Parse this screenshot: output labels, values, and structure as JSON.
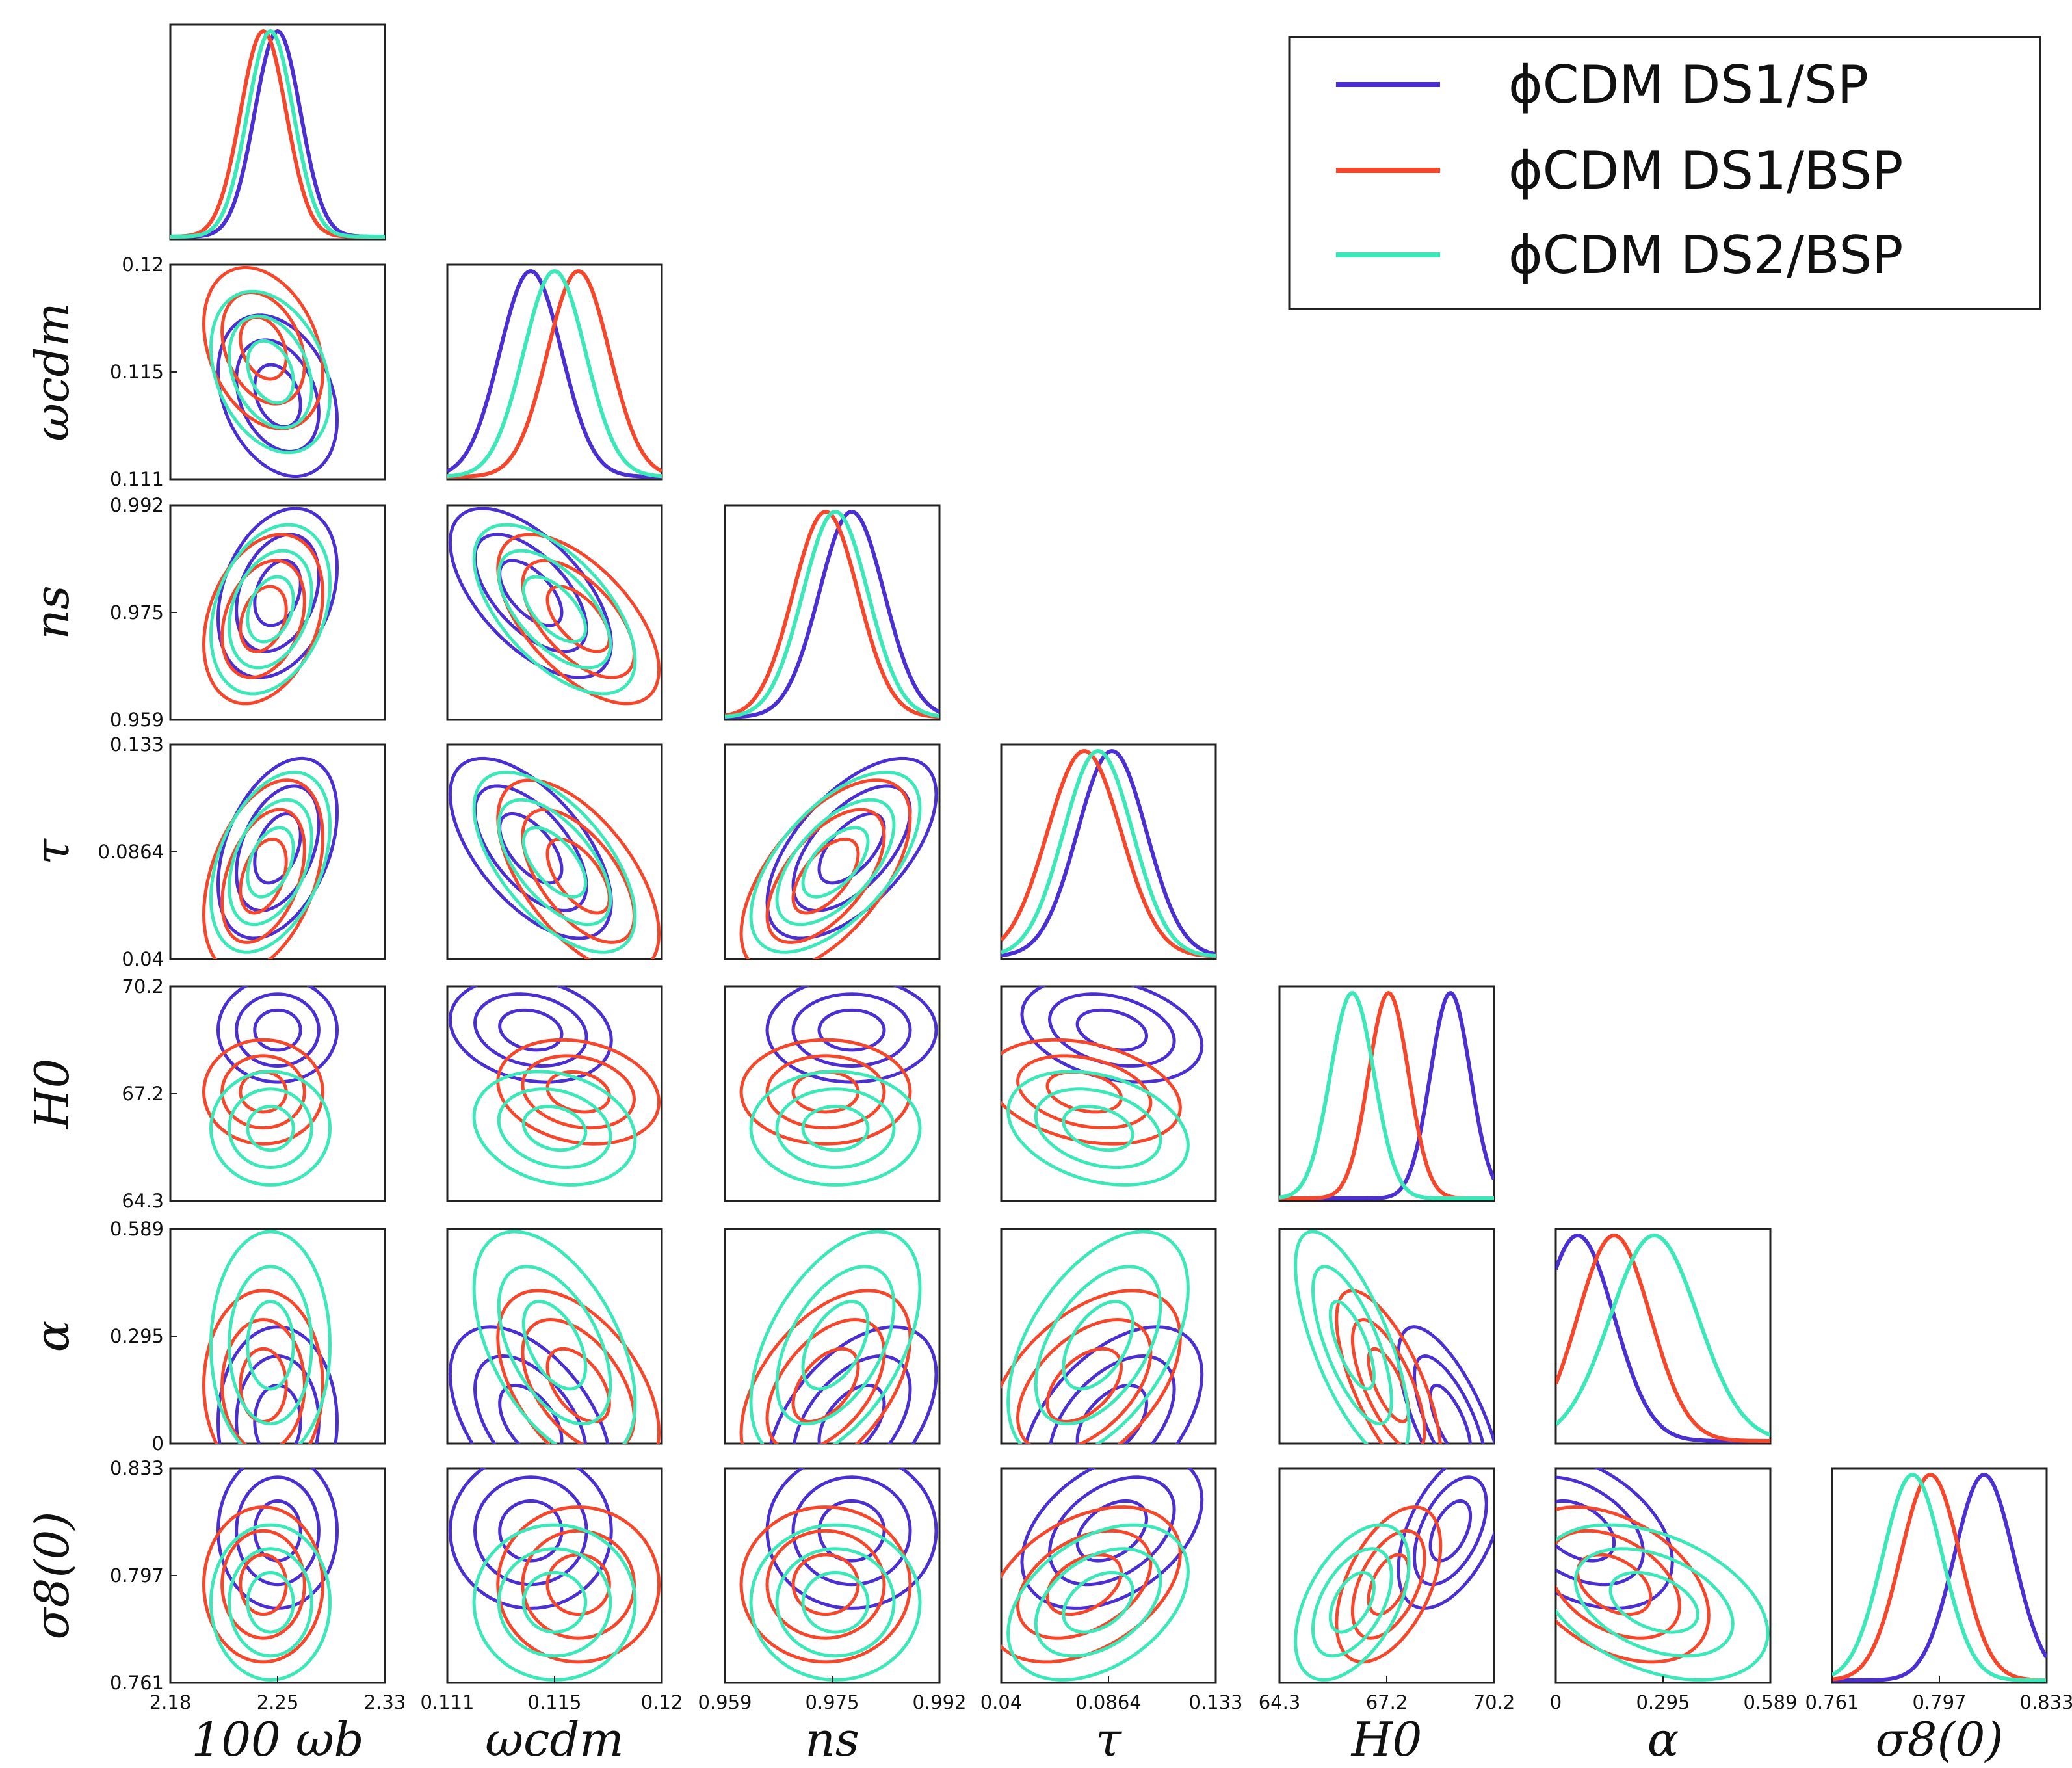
{
  "chart_data": {
    "type": "corner",
    "grid": false,
    "legend": {
      "placement": "top-right",
      "entries": [
        "ϕCDM DS1/SP",
        "ϕCDM DS1/BSP",
        "ϕCDM DS2/BSP"
      ]
    },
    "series": [
      {
        "name": "ϕCDM DS1/SP",
        "color": "#4b2fd0",
        "mean": [
          2.255,
          0.1145,
          0.9785,
          0.088,
          69.0,
          0.06,
          0.812
        ],
        "sigma": [
          0.016,
          0.0013,
          0.005,
          0.015,
          0.55,
          0.1,
          0.01
        ]
      },
      {
        "name": "ϕCDM DS1/BSP",
        "color": "#f5472c",
        "mean": [
          2.245,
          0.1165,
          0.9745,
          0.076,
          67.3,
          0.16,
          0.794
        ],
        "sigma": [
          0.016,
          0.0013,
          0.005,
          0.016,
          0.55,
          0.1,
          0.01
        ]
      },
      {
        "name": "ϕCDM DS2/BSP",
        "color": "#3de8b8",
        "mean": [
          2.25,
          0.1155,
          0.976,
          0.082,
          66.3,
          0.27,
          0.788
        ],
        "sigma": [
          0.016,
          0.0013,
          0.005,
          0.015,
          0.6,
          0.12,
          0.01
        ]
      }
    ],
    "parameters": [
      {
        "label": "100 ωb",
        "ticks": [
          "2.18",
          "2.25",
          "2.33"
        ],
        "range": [
          2.18,
          2.33
        ]
      },
      {
        "label": "ωcdm",
        "ticks": [
          "0.111",
          "0.115",
          "0.12"
        ],
        "range": [
          0.111,
          0.12
        ]
      },
      {
        "label": "ns",
        "ticks": [
          "0.959",
          "0.975",
          "0.992"
        ],
        "range": [
          0.959,
          0.992
        ]
      },
      {
        "label": "τ",
        "ticks": [
          "0.04",
          "0.0864",
          "0.133"
        ],
        "range": [
          0.04,
          0.133
        ]
      },
      {
        "label": "H0",
        "ticks": [
          "64.3",
          "67.2",
          "70.2"
        ],
        "range": [
          64.3,
          70.2
        ]
      },
      {
        "label": "α",
        "ticks": [
          "0",
          "0.295",
          "0.589"
        ],
        "range": [
          0,
          0.589
        ]
      },
      {
        "label": "σ8(0)",
        "ticks": [
          "0.761",
          "0.797",
          "0.833"
        ],
        "range": [
          0.761,
          0.833
        ]
      }
    ],
    "correlations": [
      [
        0,
        1,
        -0.3
      ],
      [
        0,
        2,
        0.3
      ],
      [
        0,
        3,
        0.4
      ],
      [
        0,
        4,
        0.0
      ],
      [
        0,
        5,
        0.0
      ],
      [
        0,
        6,
        0.0
      ],
      [
        1,
        2,
        -0.6
      ],
      [
        1,
        3,
        -0.6
      ],
      [
        1,
        4,
        -0.2
      ],
      [
        1,
        5,
        -0.5
      ],
      [
        1,
        6,
        0.0
      ],
      [
        2,
        3,
        0.6
      ],
      [
        2,
        4,
        0.0
      ],
      [
        2,
        5,
        0.5
      ],
      [
        2,
        6,
        0.0
      ],
      [
        3,
        4,
        -0.3
      ],
      [
        3,
        5,
        0.5
      ],
      [
        3,
        6,
        0.4
      ],
      [
        4,
        5,
        -0.7
      ],
      [
        4,
        6,
        0.5
      ],
      [
        5,
        6,
        -0.4
      ]
    ]
  }
}
